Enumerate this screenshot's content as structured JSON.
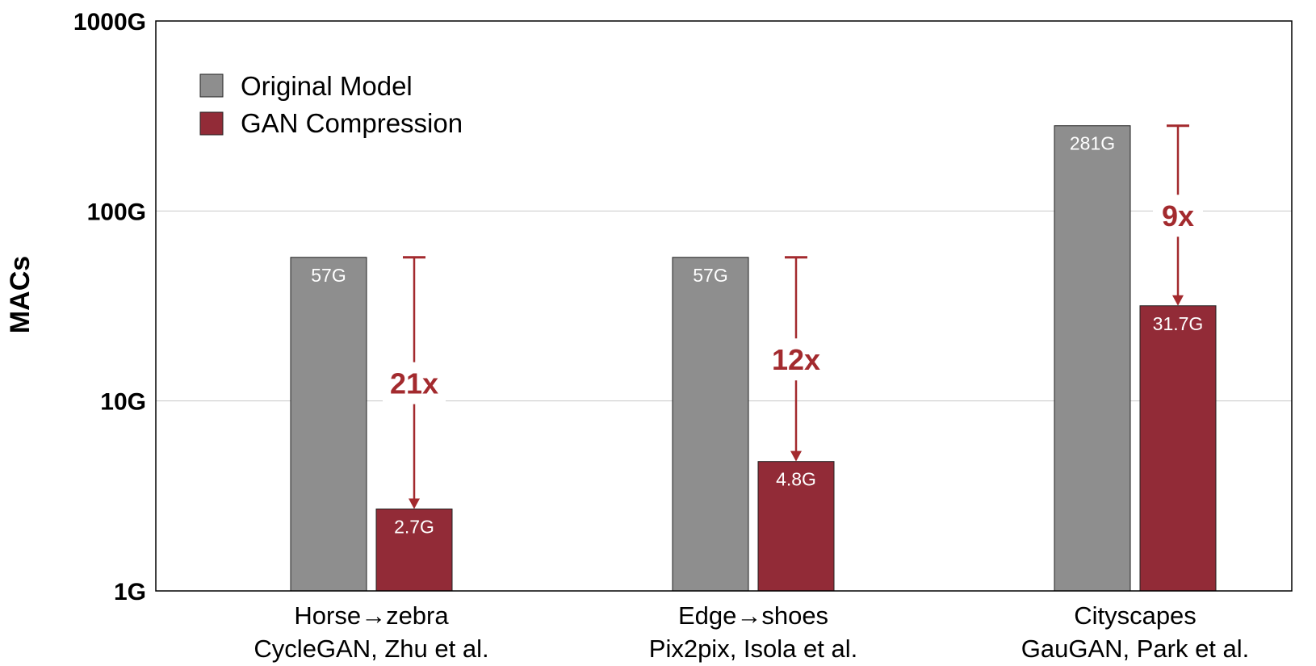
{
  "chart_data": {
    "type": "bar",
    "ylabel": "MACs",
    "yscale": "log",
    "ylim": [
      1,
      1000
    ],
    "yticks": [
      {
        "value": 1,
        "label": "1G"
      },
      {
        "value": 10,
        "label": "10G"
      },
      {
        "value": 100,
        "label": "100G"
      },
      {
        "value": 1000,
        "label": "1000G"
      }
    ],
    "grid": true,
    "legend_position": "top-left",
    "categories": [
      {
        "line1": "Horse→zebra",
        "line2": "CycleGAN, Zhu et al."
      },
      {
        "line1": "Edge→shoes",
        "line2": "Pix2pix, Isola et al."
      },
      {
        "line1": "Cityscapes",
        "line2": "GauGAN, Park et al."
      }
    ],
    "series": [
      {
        "name": "Original Model",
        "color": "#8e8e8e",
        "values": [
          57,
          57,
          281
        ],
        "labels": [
          "57G",
          "57G",
          "281G"
        ]
      },
      {
        "name": "GAN Compression",
        "color": "#922b37",
        "values": [
          2.7,
          4.8,
          31.7
        ],
        "labels": [
          "2.7G",
          "4.8G",
          "31.7G"
        ]
      }
    ],
    "annotations": [
      {
        "text": "21x",
        "from": 57,
        "to": 2.7
      },
      {
        "text": "12x",
        "from": 57,
        "to": 4.8
      },
      {
        "text": "9x",
        "from": 281,
        "to": 31.7
      }
    ],
    "annotation_color": "#a32a2e"
  }
}
